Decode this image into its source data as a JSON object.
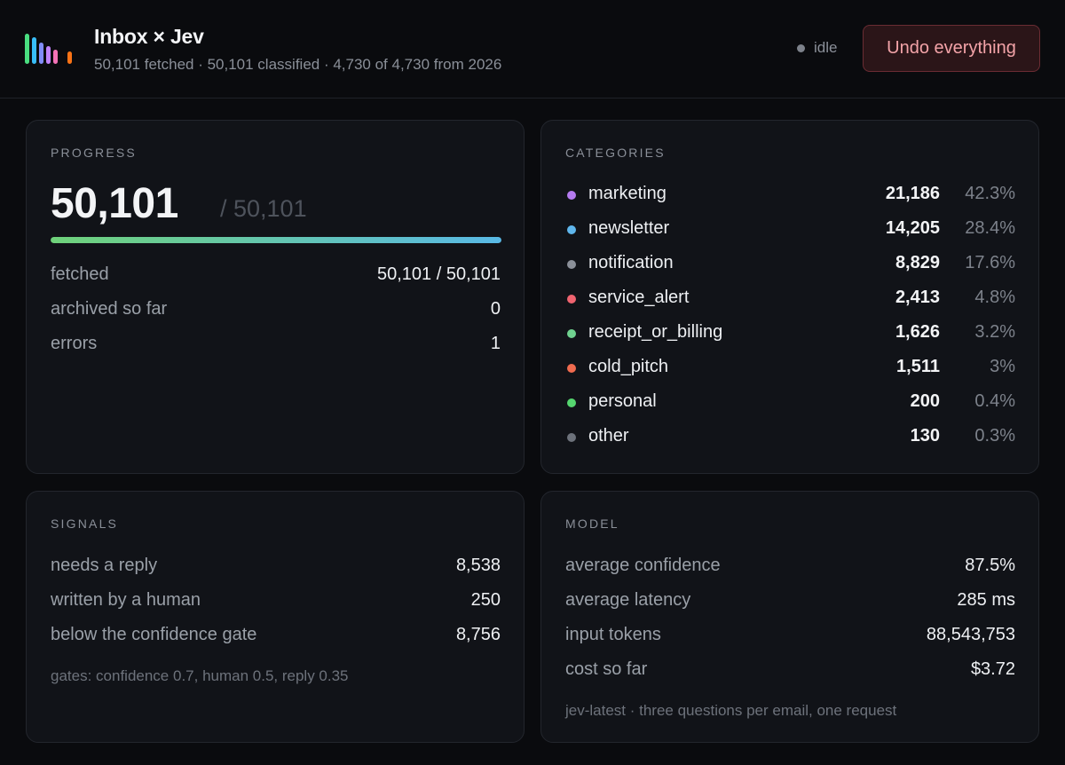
{
  "header": {
    "title": "Inbox × Jev",
    "subtitle": "50,101 fetched · 50,101 classified · 4,730 of 4,730 from 2026",
    "status": "idle",
    "undo_label": "Undo everything",
    "logo_colors": [
      "#4ade80",
      "#38bdf8",
      "#818cf8",
      "#c084fc",
      "#f472b6",
      "#f97316"
    ]
  },
  "progress": {
    "title": "PROGRESS",
    "done": "50,101",
    "total": "/ 50,101",
    "fraction": 1.0,
    "rows": [
      {
        "label": "fetched",
        "value": "50,101 / 50,101"
      },
      {
        "label": "archived so far",
        "value": "0"
      },
      {
        "label": "errors",
        "value": "1"
      }
    ]
  },
  "categories": {
    "title": "CATEGORIES",
    "items": [
      {
        "name": "marketing",
        "count": "21,186",
        "pct": "42.3%",
        "color": "#b57bf0"
      },
      {
        "name": "newsletter",
        "count": "14,205",
        "pct": "28.4%",
        "color": "#5fb6ec"
      },
      {
        "name": "notification",
        "count": "8,829",
        "pct": "17.6%",
        "color": "#8b9099"
      },
      {
        "name": "service_alert",
        "count": "2,413",
        "pct": "4.8%",
        "color": "#f06470"
      },
      {
        "name": "receipt_or_billing",
        "count": "1,626",
        "pct": "3.2%",
        "color": "#6fd28f"
      },
      {
        "name": "cold_pitch",
        "count": "1,511",
        "pct": "3%",
        "color": "#f06b4f"
      },
      {
        "name": "personal",
        "count": "200",
        "pct": "0.4%",
        "color": "#55d66f"
      },
      {
        "name": "other",
        "count": "130",
        "pct": "0.3%",
        "color": "#6d727b"
      }
    ]
  },
  "signals": {
    "title": "SIGNALS",
    "rows": [
      {
        "label": "needs a reply",
        "value": "8,538"
      },
      {
        "label": "written by a human",
        "value": "250"
      },
      {
        "label": "below the confidence gate",
        "value": "8,756"
      }
    ],
    "footnote": "gates: confidence 0.7, human 0.5, reply 0.35"
  },
  "model": {
    "title": "MODEL",
    "rows": [
      {
        "label": "average confidence",
        "value": "87.5%"
      },
      {
        "label": "average latency",
        "value": "285 ms"
      },
      {
        "label": "input tokens",
        "value": "88,543,753"
      },
      {
        "label": "cost so far",
        "value": "$3.72"
      }
    ],
    "footnote": "jev-latest · three questions per email, one request"
  }
}
